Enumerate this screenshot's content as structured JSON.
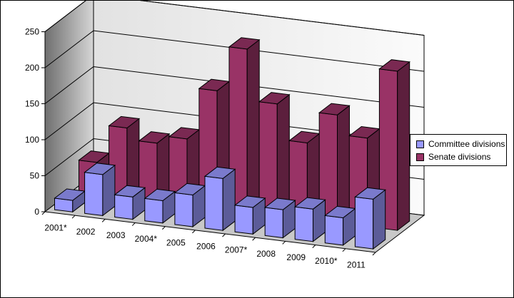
{
  "chart_data": {
    "type": "bar",
    "title": "",
    "xlabel": "",
    "ylabel": "",
    "categories": [
      "2001*",
      "2002",
      "2003",
      "2004*",
      "2005",
      "2006",
      "2007*",
      "2008",
      "2009",
      "2010*",
      "2011"
    ],
    "series": [
      {
        "name": "Committee divisions",
        "values": [
          16,
          57,
          31,
          31,
          44,
          72,
          37,
          39,
          45,
          38,
          69
        ],
        "color": "#9999ff"
      },
      {
        "name": "Senate divisions",
        "values": [
          43,
          96,
          80,
          91,
          163,
          226,
          155,
          106,
          150,
          123,
          221
        ],
        "color": "#993366"
      }
    ],
    "ylim": [
      0,
      250
    ],
    "yticks": [
      0,
      50,
      100,
      150,
      200,
      250
    ],
    "grid": true,
    "legend_position": "right"
  }
}
